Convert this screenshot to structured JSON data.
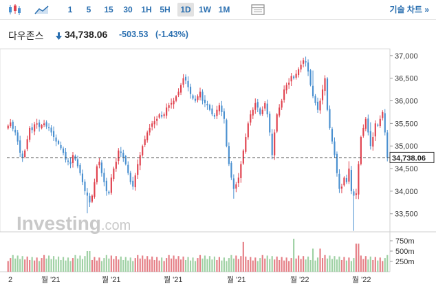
{
  "toolbar": {
    "intervals": [
      {
        "label": "1",
        "active": false
      },
      {
        "label": "5",
        "active": false
      },
      {
        "label": "15",
        "active": false
      },
      {
        "label": "30",
        "active": false
      },
      {
        "label": "1H",
        "active": false
      },
      {
        "label": "5H",
        "active": false
      },
      {
        "label": "1D",
        "active": true
      },
      {
        "label": "1W",
        "active": false
      },
      {
        "label": "1M",
        "active": false
      }
    ],
    "chart_toggle_label": "기술 차트 »"
  },
  "header": {
    "title": "다우존스",
    "price": "34,738.06",
    "change": "-503.53",
    "change_percent": "(-1.43%)",
    "down_color": "#2a6fb0"
  },
  "chart_data": {
    "type": "candlestick",
    "price_axis_ticks": [
      "37,000",
      "36,500",
      "36,000",
      "35,500",
      "35,000",
      "34,500",
      "34,000",
      "33,500"
    ],
    "price_ylim": [
      33100,
      37150
    ],
    "current_price_label": "34,738.06",
    "current_price": 34738.06,
    "volume_axis_ticks": [
      "750m",
      "500m",
      "250m"
    ],
    "volume_ylim": [
      0,
      900
    ],
    "date_labels": [
      "2",
      "월 '21",
      "월 '21",
      "월 '21",
      "월 '21",
      "월 '22",
      "월 '22"
    ],
    "up_color": "#e0424e",
    "down_color": "#4a90d0",
    "volume_up_color": "#e57f86",
    "volume_down_color": "#9fd1a4",
    "watermark": "Investing.com",
    "closes": [
      35450,
      35520,
      35380,
      35300,
      35100,
      34850,
      34750,
      34900,
      35150,
      35400,
      35350,
      35480,
      35500,
      35420,
      35460,
      35500,
      35430,
      35400,
      35300,
      35200,
      35100,
      35050,
      34950,
      34850,
      34700,
      34650,
      34600,
      34800,
      34700,
      34550,
      34400,
      34200,
      34000,
      33900,
      33750,
      33900,
      34200,
      34550,
      34650,
      34400,
      34200,
      34000,
      33950,
      34300,
      34500,
      34650,
      34900,
      34850,
      34750,
      34600,
      34400,
      34200,
      34100,
      34350,
      34600,
      34800,
      35000,
      35150,
      35300,
      35400,
      35500,
      35550,
      35600,
      35700,
      35650,
      35700,
      35850,
      35900,
      35950,
      36000,
      36100,
      36200,
      36350,
      36500,
      36450,
      36300,
      36150,
      36050,
      36000,
      36100,
      36200,
      36000,
      35950,
      35900,
      35800,
      35700,
      35650,
      35800,
      35900,
      35750,
      35600,
      35000,
      34600,
      34300,
      34050,
      34150,
      34300,
      34600,
      34900,
      35200,
      35500,
      35700,
      35800,
      35950,
      35850,
      35700,
      35800,
      35950,
      35700,
      35300,
      34800,
      35300,
      35700,
      35850,
      36000,
      36250,
      36350,
      36400,
      36550,
      36500,
      36600,
      36700,
      36800,
      36900,
      36850,
      36650,
      36350,
      36100,
      35950,
      35800,
      36000,
      36250,
      36500,
      35800,
      35400,
      35100,
      34800,
      34400,
      34050,
      34100,
      34300,
      34200,
      34500,
      34000,
      33900,
      33950,
      34600,
      35200,
      35400,
      35600,
      35300,
      35000,
      35200,
      35500,
      35450,
      35600,
      35750,
      35300,
      34738
    ]
  }
}
